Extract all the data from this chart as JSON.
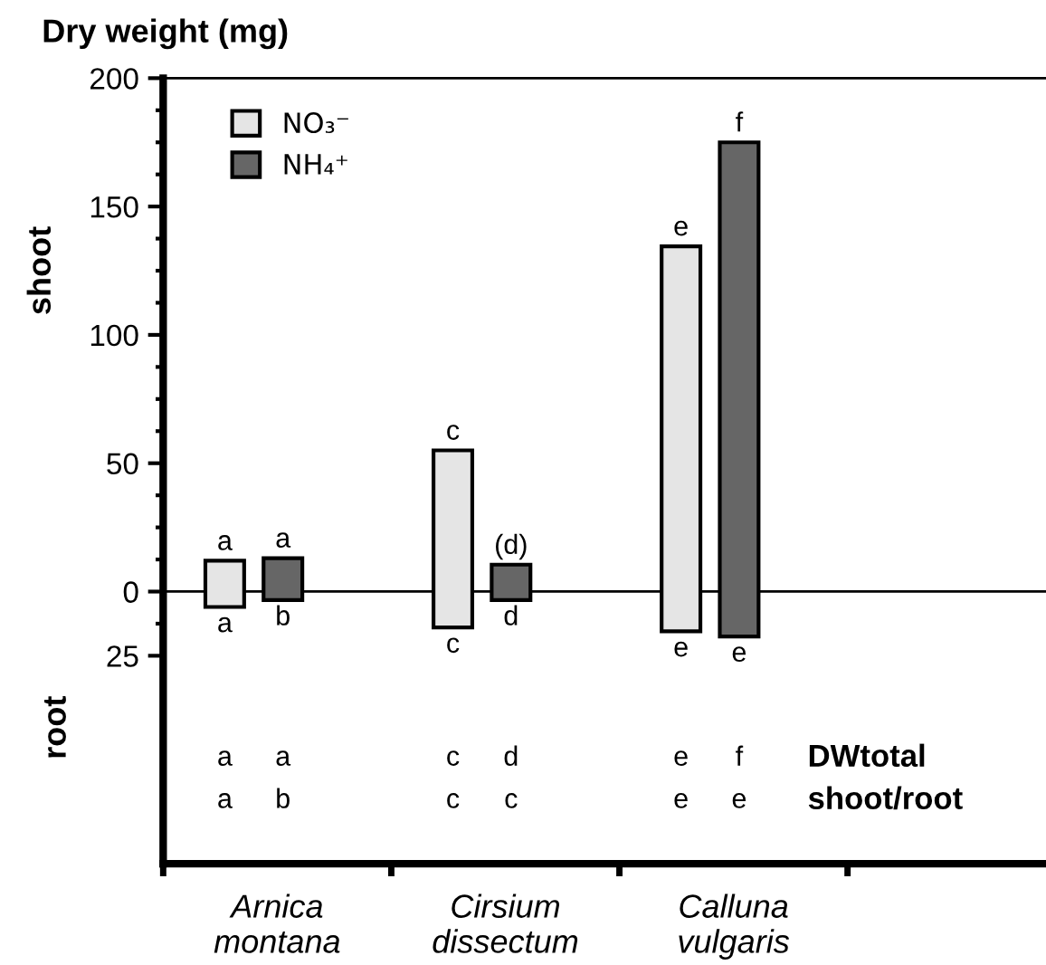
{
  "chart_data": {
    "type": "bar",
    "title": "Dry weight (mg)",
    "ylabel": "shoot",
    "categories": [
      "Arnica\nmontana",
      "Cirsium\ndissectum",
      "Calluna\nvulgaris",
      null
    ],
    "series": [
      {
        "name": "NO₃⁻",
        "color": "#e5e5e5",
        "base": [
          -6,
          -14,
          -15.5,
          null
        ],
        "values": [
          18,
          69,
          150,
          null
        ],
        "value_labels": [
          "a",
          "c",
          "e",
          null
        ]
      },
      {
        "name": "NH₄⁺",
        "color": "#666666",
        "base": [
          -3.3,
          -3.3,
          -17.5,
          null
        ],
        "values": [
          16.3,
          13.8,
          192.5,
          null
        ],
        "value_labels": [
          "a",
          "(d)",
          "f",
          null
        ]
      }
    ],
    "ylim": [
      -106,
      200
    ],
    "yticks": [
      {
        "value": -25,
        "label": "25"
      },
      0,
      50,
      100,
      150,
      200
    ],
    "ref_lines": [
      {
        "axis": "y",
        "value": 0,
        "color": "#000000"
      }
    ],
    "legend": "top left",
    "grid": false,
    "annotations": [
      "root",
      "a",
      "b",
      "c",
      "d",
      "e",
      "e",
      "DWtotal",
      "a",
      "a",
      "c",
      "d",
      "e",
      "f",
      "shoot/root",
      "a",
      "b",
      "c",
      "c",
      "e",
      "e"
    ]
  }
}
